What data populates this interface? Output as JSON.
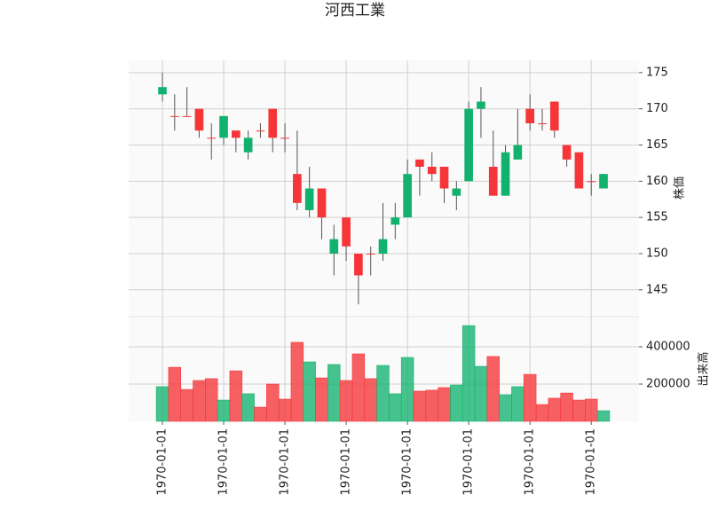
{
  "chart_data": {
    "type": "candlestick",
    "title": "河西工業",
    "categories": [
      "1970-01-01",
      null,
      null,
      null,
      null,
      "1970-01-01",
      null,
      null,
      null,
      null,
      "1970-01-01",
      null,
      null,
      null,
      null,
      "1970-01-01",
      null,
      null,
      null,
      null,
      "1970-01-01",
      null,
      null,
      null,
      null,
      "1970-01-01",
      null,
      null,
      null,
      null,
      "1970-01-01",
      null,
      null,
      null,
      null,
      "1970-01-01",
      null
    ],
    "open": [
      172,
      169,
      169,
      170,
      166,
      166,
      167,
      164,
      167,
      170,
      166,
      161,
      156,
      159,
      150,
      155,
      150,
      150,
      150,
      154,
      155,
      163,
      162,
      162,
      158,
      160,
      170,
      162,
      158,
      163,
      170,
      168,
      171,
      165,
      164,
      160,
      159
    ],
    "high": [
      175,
      172,
      173,
      170,
      168,
      169,
      167,
      167,
      168,
      170,
      168,
      167,
      162,
      159,
      154,
      155,
      150,
      151,
      157,
      157,
      163,
      163,
      164,
      162,
      160,
      171,
      173,
      167,
      165,
      170,
      172,
      170,
      171,
      165,
      164,
      161,
      161
    ],
    "low": [
      171,
      167,
      169,
      166,
      163,
      165,
      164,
      163,
      166,
      164,
      164,
      156,
      155,
      152,
      147,
      149,
      143,
      147,
      149,
      152,
      155,
      158,
      160,
      157,
      156,
      160,
      166,
      158,
      158,
      163,
      167,
      167,
      166,
      162,
      159,
      158,
      159
    ],
    "close": [
      173,
      169,
      169,
      167,
      166,
      169,
      166,
      166,
      167,
      166,
      166,
      157,
      159,
      155,
      152,
      151,
      147,
      150,
      152,
      155,
      161,
      162,
      161,
      159,
      159,
      170,
      171,
      158,
      164,
      165,
      168,
      168,
      167,
      163,
      159,
      160,
      161
    ],
    "volume": [
      186000,
      290000,
      171000,
      219000,
      229000,
      114000,
      271000,
      148000,
      76000,
      200000,
      119000,
      424000,
      319000,
      233000,
      305000,
      219000,
      362000,
      229000,
      300000,
      148000,
      343000,
      162000,
      167000,
      181000,
      195000,
      514000,
      295000,
      348000,
      143000,
      186000,
      252000,
      90000,
      124000,
      152000,
      114000,
      119000,
      57000
    ],
    "ylabel": "株価",
    "ylim": [
      141.3,
      176.7
    ],
    "yticks": [
      145,
      150,
      155,
      160,
      165,
      170,
      175
    ],
    "volume_ylabel": "出来高",
    "volume_ylim": [
      0,
      562000
    ],
    "volume_yticks": [
      200000,
      400000
    ],
    "up_color": "#12b26e",
    "down_color": "#f63538",
    "grid": true
  }
}
